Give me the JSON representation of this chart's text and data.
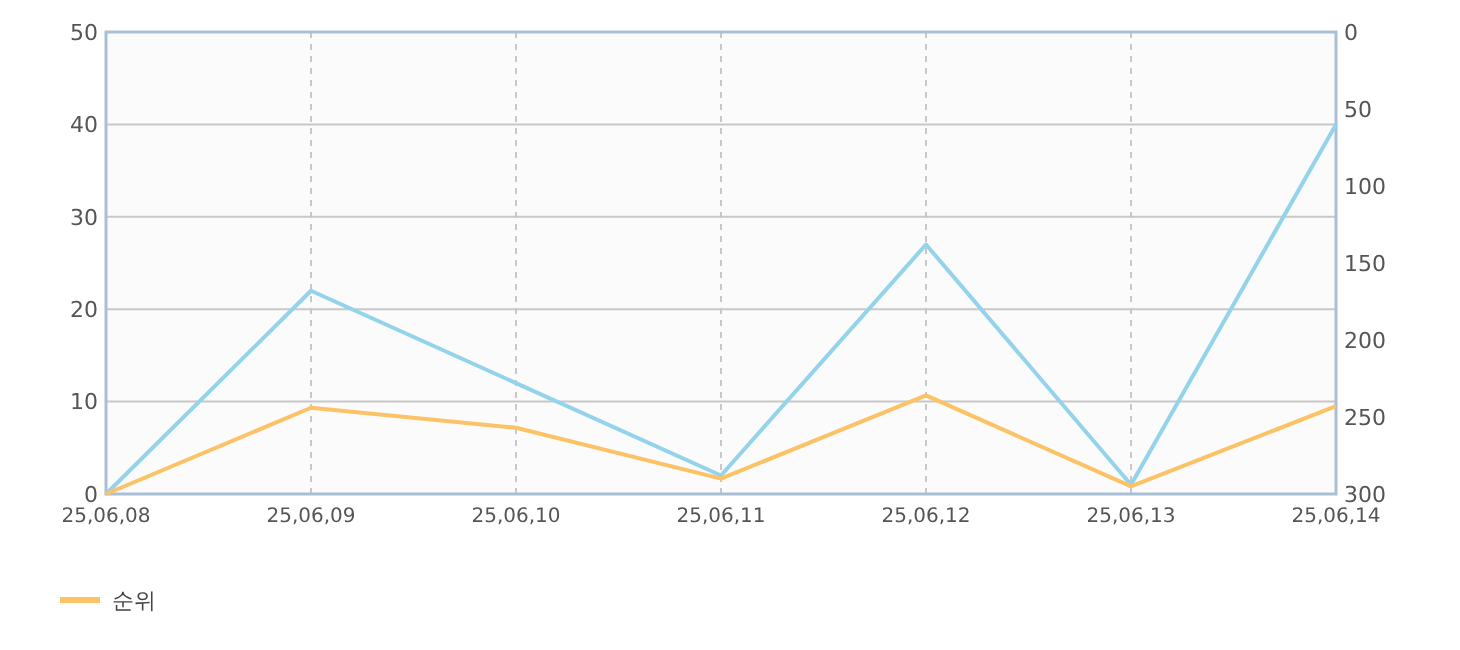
{
  "chart_data": {
    "type": "line",
    "categories": [
      "25,06,08",
      "25,06,09",
      "25,06,10",
      "25,06,11",
      "25,06,12",
      "25,06,13",
      "25,06,14"
    ],
    "series": [
      {
        "color": "#94d3ec",
        "values": [
          0,
          22,
          12,
          2,
          27,
          1,
          40
        ]
      },
      {
        "name": "순위",
        "color": "#fcc266",
        "axis": "y2",
        "values": [
          300,
          244,
          257,
          290,
          236,
          295,
          243
        ]
      }
    ],
    "ylim": [
      0,
      50
    ],
    "yticks": [
      0,
      10,
      20,
      30,
      40,
      50
    ],
    "y2lim": [
      300,
      0
    ],
    "y2ticks": [
      0,
      50,
      100,
      150,
      200,
      250,
      300
    ],
    "grid": true,
    "legend": "bottom left"
  }
}
